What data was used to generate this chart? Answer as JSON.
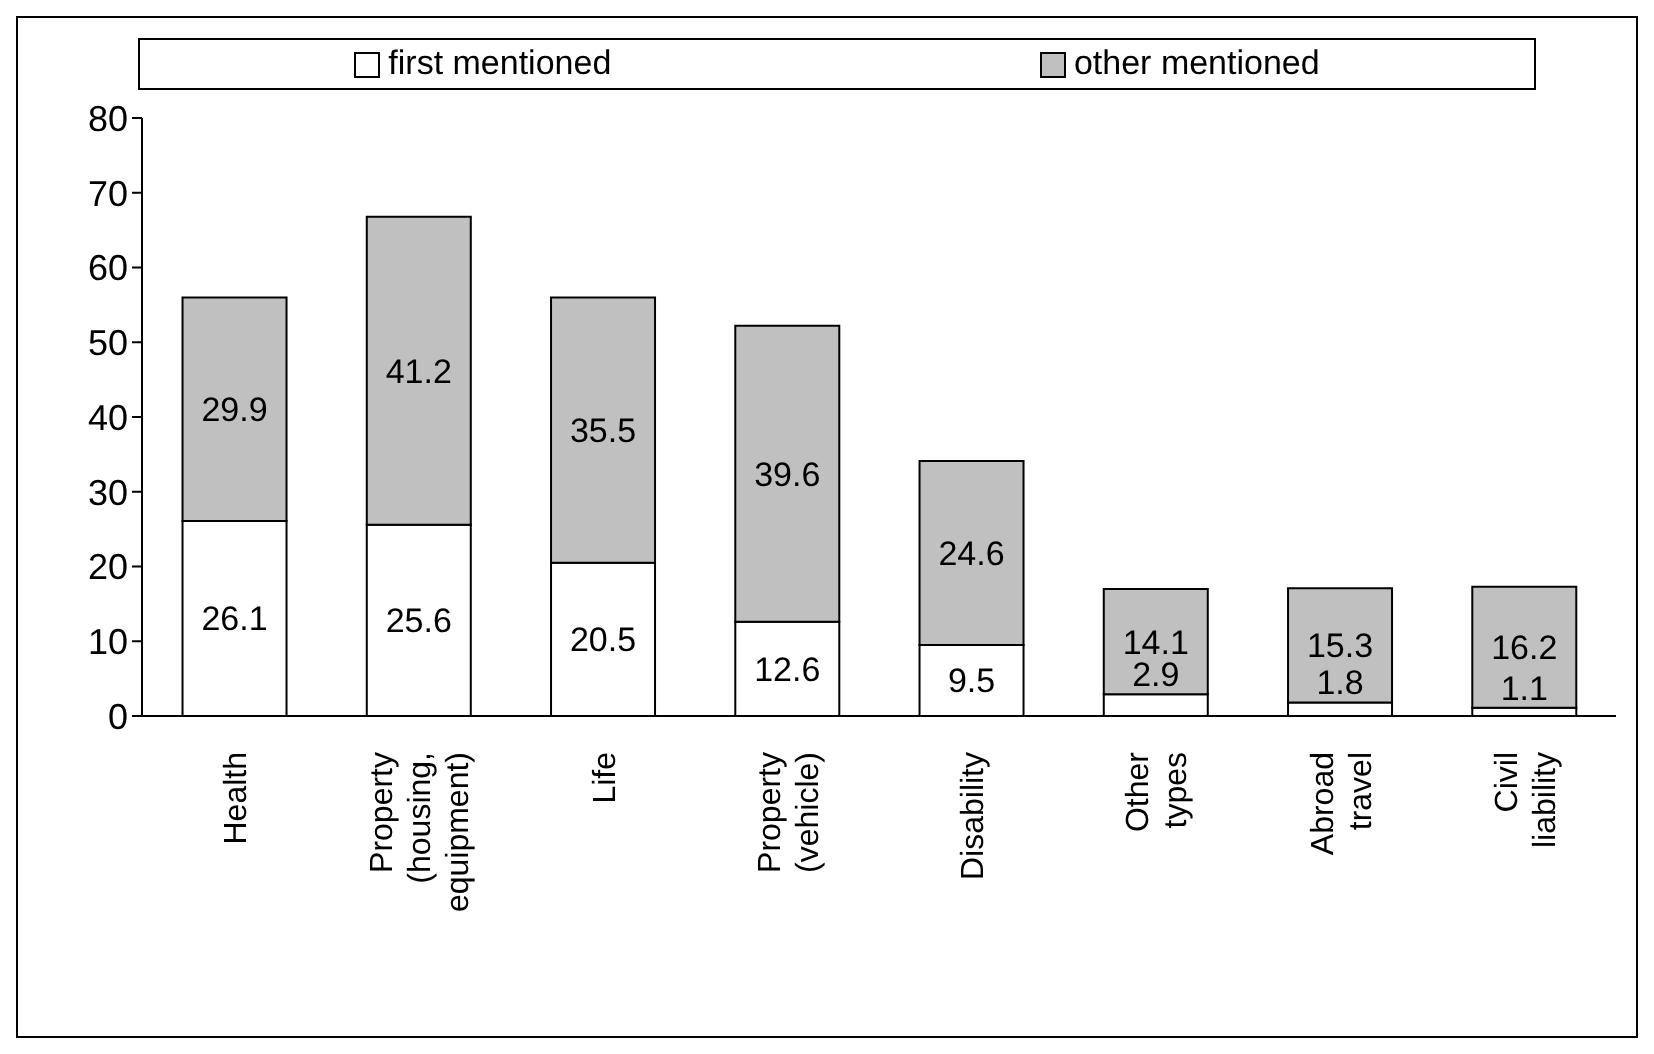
{
  "chart_data": {
    "type": "bar",
    "stacked": true,
    "categories": [
      "Health",
      "Property (housing, equipment)",
      "Life",
      "Property (vehicle)",
      "Disability",
      "Other types",
      "Abroad travel",
      "Civil liability"
    ],
    "series": [
      {
        "name": "first mentioned",
        "color": "#ffffff",
        "values": [
          26.1,
          25.6,
          20.5,
          12.6,
          9.5,
          2.9,
          1.8,
          1.1
        ]
      },
      {
        "name": "other mentioned",
        "color": "#c0c0c0",
        "values": [
          29.9,
          41.2,
          35.5,
          39.6,
          24.6,
          14.1,
          15.3,
          16.2
        ]
      }
    ],
    "ylim": [
      0,
      80
    ],
    "yticks": [
      0,
      10,
      20,
      30,
      40,
      50,
      60,
      70,
      80
    ],
    "grid": false,
    "legend": "top",
    "data_labels": true
  }
}
